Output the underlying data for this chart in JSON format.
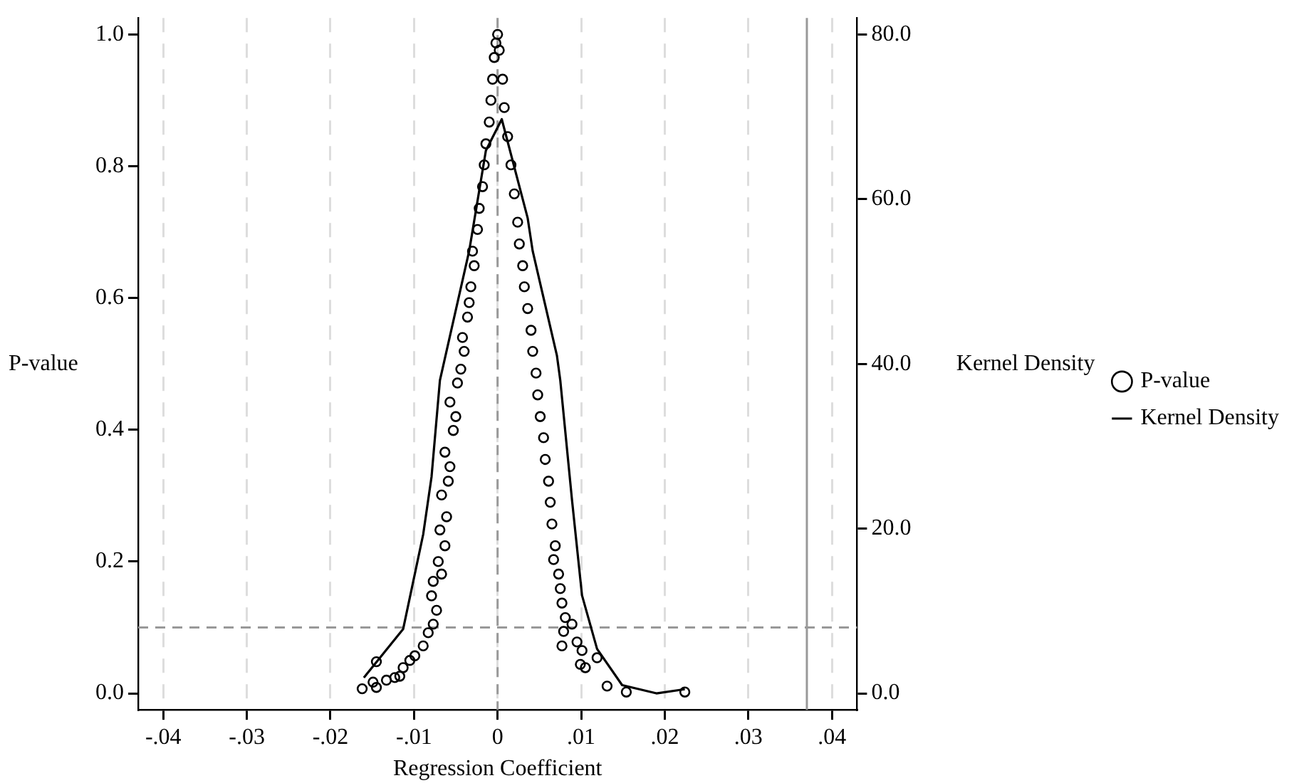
{
  "chart_data": {
    "type": "scatter",
    "xlabel": "Regression Coefficient",
    "ylabel": "P-value",
    "y2label": "Kernel Density",
    "xlim": [
      -0.043,
      0.043
    ],
    "ylim": [
      -0.025,
      1.025
    ],
    "y2lim": [
      -2,
      82
    ],
    "xticks": [
      {
        "value": -0.04,
        "label": "-.04"
      },
      {
        "value": -0.03,
        "label": "-.03"
      },
      {
        "value": -0.02,
        "label": "-.02"
      },
      {
        "value": -0.01,
        "label": "-.01"
      },
      0,
      {
        "value": 0.01,
        "label": ".01"
      },
      {
        "value": 0.02,
        "label": ".02"
      },
      {
        "value": 0.03,
        "label": ".03"
      },
      {
        "value": 0.04,
        "label": ".04"
      }
    ],
    "yticks": [
      {
        "value": 0,
        "label": "0.0"
      },
      0.2,
      0.4,
      0.6,
      0.8,
      {
        "value": 1,
        "label": "1.0"
      }
    ],
    "y2ticks": [
      {
        "value": 0,
        "label": "0.0"
      },
      {
        "value": 20,
        "label": "20.0"
      },
      {
        "value": 40,
        "label": "40.0"
      },
      {
        "value": 60,
        "label": "60.0"
      },
      {
        "value": 80,
        "label": "80.0"
      }
    ],
    "grid": "x",
    "legend": "right",
    "ref_lines": [
      {
        "axis": "y",
        "value": 0.1,
        "color": "#999999",
        "line_style": "dashed"
      },
      {
        "axis": "x",
        "value": 0,
        "color": "#999999",
        "line_style": "dashed"
      },
      {
        "axis": "x",
        "value": 0.037,
        "color": "#999999",
        "line_style": "solid"
      }
    ],
    "series": [
      {
        "name": "P-value",
        "type": "scatter",
        "color": "#000000",
        "marker": "circle",
        "x": [
          -0.0162,
          -0.0149,
          -0.0145,
          -0.0133,
          -0.0123,
          -0.0117,
          -0.0145,
          -0.0113,
          -0.0105,
          -0.0099,
          -0.0089,
          -0.0083,
          -0.0077,
          -0.0073,
          -0.0079,
          -0.0067,
          -0.0077,
          -0.0071,
          -0.0063,
          -0.0069,
          -0.0061,
          -0.0067,
          -0.0059,
          -0.0057,
          -0.0063,
          -0.0053,
          -0.005,
          -0.0057,
          -0.0048,
          -0.0044,
          -0.004,
          -0.0042,
          -0.0036,
          -0.0034,
          -0.0032,
          -0.0028,
          -0.003,
          -0.0024,
          -0.0022,
          -0.0018,
          -0.0016,
          -0.0014,
          -0.001,
          -0.0008,
          -0.0006,
          -0.0004,
          -0.0002,
          0,
          0.0002,
          0.0006,
          0.0008,
          0.0012,
          0.0016,
          0.002,
          0.0024,
          0.0026,
          0.003,
          0.0032,
          0.0036,
          0.004,
          0.0042,
          0.0046,
          0.0048,
          0.0051,
          0.0055,
          0.0057,
          0.0061,
          0.0063,
          0.0065,
          0.0069,
          0.0067,
          0.0073,
          0.0075,
          0.0077,
          0.0081,
          0.0079,
          0.0089,
          0.0077,
          0.0095,
          0.0101,
          0.0099,
          0.0119,
          0.0105,
          0.0131,
          0.0154,
          0.0224
        ],
        "values": [
          0.007,
          0.017,
          0.009,
          0.02,
          0.024,
          0.026,
          0.048,
          0.039,
          0.05,
          0.057,
          0.072,
          0.092,
          0.105,
          0.126,
          0.148,
          0.181,
          0.17,
          0.2,
          0.224,
          0.248,
          0.268,
          0.301,
          0.322,
          0.344,
          0.366,
          0.399,
          0.42,
          0.442,
          0.471,
          0.492,
          0.519,
          0.54,
          0.571,
          0.593,
          0.617,
          0.649,
          0.671,
          0.704,
          0.736,
          0.769,
          0.802,
          0.834,
          0.867,
          0.9,
          0.932,
          0.965,
          0.987,
          1,
          0.976,
          0.932,
          0.889,
          0.845,
          0.802,
          0.758,
          0.715,
          0.682,
          0.649,
          0.617,
          0.584,
          0.551,
          0.519,
          0.486,
          0.453,
          0.42,
          0.388,
          0.355,
          0.322,
          0.29,
          0.257,
          0.224,
          0.203,
          0.181,
          0.159,
          0.137,
          0.115,
          0.094,
          0.105,
          0.072,
          0.078,
          0.065,
          0.044,
          0.054,
          0.039,
          0.011,
          0.002,
          0.002
        ]
      },
      {
        "name": "Kernel Density",
        "type": "line",
        "axis": "y2",
        "color": "#000000",
        "marker": "none",
        "line_style": "solid",
        "x": [
          -0.016,
          -0.0113,
          -0.0089,
          -0.0079,
          -0.0069,
          -0.0034,
          -0.0014,
          0.0005,
          0.0036,
          0.0042,
          0.0071,
          0.0075,
          0.0089,
          0.0101,
          0.0119,
          0.0149,
          0.019,
          0.0224
        ],
        "values": [
          1.9,
          7.8,
          19.3,
          26.3,
          38,
          53.7,
          65.9,
          69.7,
          57.7,
          53.7,
          41,
          38,
          23.5,
          11.9,
          5.4,
          1,
          0,
          0.5
        ]
      }
    ]
  }
}
